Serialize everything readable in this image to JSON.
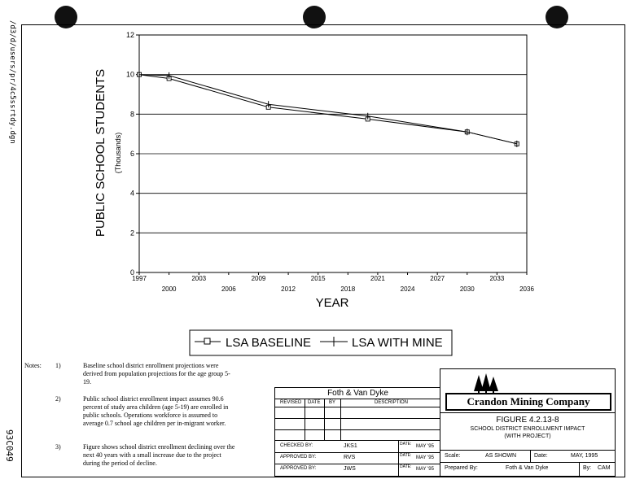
{
  "side_text": {
    "file_path": "/d3/d/users/pr/4c5ssrtdy.dgn",
    "drawing_code": "93C049"
  },
  "chart_data": {
    "type": "line",
    "ylabel": "PUBLIC SCHOOL STUDENTS",
    "ylabel_sub": "(Thousands)",
    "xlabel": "YEAR",
    "xlim": [
      1997,
      2036
    ],
    "ylim": [
      0,
      12
    ],
    "yticks": [
      0,
      2,
      4,
      6,
      8,
      10,
      12
    ],
    "xticks_top_row": [
      1997,
      2003,
      2009,
      2015,
      2021,
      2027,
      2033
    ],
    "xticks_bottom_row": [
      2000,
      2006,
      2012,
      2018,
      2024,
      2030,
      2036
    ],
    "grid": true,
    "series": [
      {
        "name": "LSA BASELINE",
        "marker": "square",
        "x": [
          1997,
          2000,
          2010,
          2020,
          2030,
          2035
        ],
        "y": [
          10.0,
          9.8,
          8.35,
          7.75,
          7.1,
          6.5
        ]
      },
      {
        "name": "LSA WITH MINE",
        "marker": "plus",
        "x": [
          1997,
          2000,
          2010,
          2020,
          2030,
          2035
        ],
        "y": [
          10.0,
          9.95,
          8.5,
          7.9,
          7.1,
          6.5
        ]
      }
    ],
    "legend_position": "bottom-center"
  },
  "notes": {
    "label": "Notes:",
    "items": [
      {
        "num": "1)",
        "text": "Baseline school district enrollment projections were derived from population projections for the age group 5-19."
      },
      {
        "num": "2)",
        "text": "Public school district enrollment impact assumes 90.6 percent of study area children (age 5-19) are enrolled in public schools. Operations workforce is assumed to average 0.7 school age children per in-migrant worker."
      },
      {
        "num": "3)",
        "text": "Figure shows school district enrollment declining over the next 40 years with a small increase due to the project during the period of decline."
      }
    ]
  },
  "title_block": {
    "firm": "Foth & Van Dyke",
    "rev_headers": {
      "revised": "REVISED",
      "date": "DATE",
      "by": "BY",
      "description": "DESCRIPTION"
    },
    "checked_label": "CHECKED BY:",
    "checked_by": "JKS1",
    "approved_label_1": "APPROVED BY:",
    "approved_by_1": "RVS",
    "approved_label_2": "APPROVED BY:",
    "approved_by_2": "JWS",
    "date_label": "DATE:",
    "date_1": "MAY '95",
    "date_2": "MAY '95",
    "date_3": "MAY '95",
    "company": "Crandon Mining Company",
    "figure_no": "FIGURE 4.2.13-8",
    "figure_title_1": "SCHOOL DISTRICT ENROLLMENT IMPACT",
    "figure_title_2": "(WITH PROJECT)",
    "scale_label": "Scale:",
    "scale_value": "AS SHOWN",
    "date2_label": "Date:",
    "date2_value": "MAY, 1995",
    "prepared_label": "Prepared By:",
    "prepared_value": "Foth & Van Dyke",
    "by_label": "By:",
    "by_value": "CAM"
  }
}
